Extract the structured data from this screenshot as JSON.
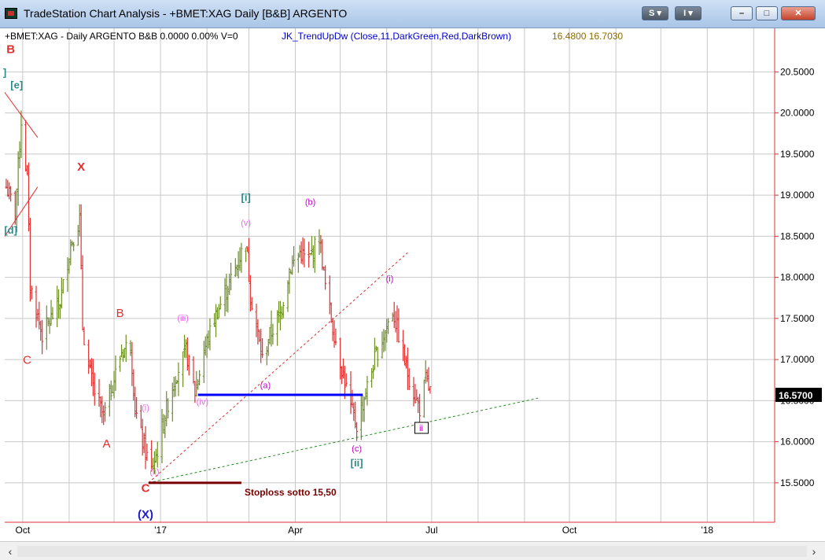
{
  "window": {
    "title": "TradeStation Chart Analysis - +BMET:XAG Daily [B&B] ARGENTO",
    "buttons": {
      "s_label": "S",
      "i_label": "I",
      "minimize": "–",
      "maximize": "□",
      "close": "✕"
    }
  },
  "chart_header": {
    "symbol_info": "+BMET:XAG - Daily  ARGENTO  B&B  0.0000  0.00%  V=0",
    "indicator": "JK_TrendUpDw (Close,11,DarkGreen,Red,DarkBrown)",
    "indicator_values": "16.4800  16.7030"
  },
  "colors": {
    "up_bar": "#6b8e23",
    "down_bar": "#e03030",
    "neutral_bar": "#8b5a2b",
    "axis_red": "#e03030",
    "grid": "#c8c8c8",
    "support_line": "#0000ff",
    "stoploss_line": "#7a0000",
    "trend_dotted_green": "#228b22",
    "trend_dotted_red": "#e03030"
  },
  "chart_data": {
    "type": "ohlc-bar",
    "title": "",
    "xlabel": "",
    "ylabel": "",
    "x_range": [
      "2016-09-19",
      "2018-02-15"
    ],
    "ylim": [
      15.02,
      21.03
    ],
    "y_ticks": [
      15.5,
      16.0,
      16.5,
      17.0,
      17.5,
      18.0,
      18.5,
      19.0,
      19.5,
      20.0,
      20.5
    ],
    "y_tick_labels": [
      "15.5000",
      "16.0000",
      "16.5000",
      "17.0000",
      "17.5000",
      "18.0000",
      "18.5000",
      "19.0000",
      "19.5000",
      "20.0000",
      "20.5000"
    ],
    "x_ticks": [
      {
        "date": "2016-10-01",
        "label": "Oct"
      },
      {
        "date": "2017-01-01",
        "label": "'17"
      },
      {
        "date": "2017-04-01",
        "label": "Apr"
      },
      {
        "date": "2017-07-01",
        "label": "Jul"
      },
      {
        "date": "2017-10-01",
        "label": "Oct"
      },
      {
        "date": "2018-01-01",
        "label": "'18"
      }
    ],
    "x_grid_dates": [
      "2016-11-01",
      "2016-12-01",
      "2017-02-01",
      "2017-03-01",
      "2017-05-01",
      "2017-06-01",
      "2017-08-01",
      "2017-09-01",
      "2017-11-01",
      "2017-12-01",
      "2018-02-01"
    ],
    "last_price": "16.5700",
    "last_price_value": 16.57,
    "close_path": [
      [
        "2016-09-20",
        19.1
      ],
      [
        "2016-09-26",
        18.8
      ],
      [
        "2016-09-30",
        19.9
      ],
      [
        "2016-10-04",
        19.2
      ],
      [
        "2016-10-06",
        17.9
      ],
      [
        "2016-10-10",
        17.6
      ],
      [
        "2016-10-14",
        17.3
      ],
      [
        "2016-10-20",
        17.5
      ],
      [
        "2016-10-26",
        17.7
      ],
      [
        "2016-11-02",
        18.4
      ],
      [
        "2016-11-08",
        18.7
      ],
      [
        "2016-11-10",
        17.4
      ],
      [
        "2016-11-14",
        16.9
      ],
      [
        "2016-11-18",
        16.6
      ],
      [
        "2016-11-24",
        16.3
      ],
      [
        "2016-11-30",
        16.7
      ],
      [
        "2016-12-06",
        17.1
      ],
      [
        "2016-12-12",
        17.2
      ],
      [
        "2016-12-15",
        16.4
      ],
      [
        "2016-12-20",
        16.0
      ],
      [
        "2016-12-26",
        15.65
      ],
      [
        "2016-12-30",
        15.9
      ],
      [
        "2017-01-05",
        16.4
      ],
      [
        "2017-01-11",
        16.8
      ],
      [
        "2017-01-18",
        17.1
      ],
      [
        "2017-01-24",
        16.6
      ],
      [
        "2017-01-30",
        17.1
      ],
      [
        "2017-02-06",
        17.5
      ],
      [
        "2017-02-13",
        17.8
      ],
      [
        "2017-02-20",
        18.1
      ],
      [
        "2017-02-27",
        18.45
      ],
      [
        "2017-03-02",
        17.8
      ],
      [
        "2017-03-06",
        17.4
      ],
      [
        "2017-03-10",
        17.0
      ],
      [
        "2017-03-15",
        17.3
      ],
      [
        "2017-03-22",
        17.55
      ],
      [
        "2017-03-28",
        18.1
      ],
      [
        "2017-04-04",
        18.3
      ],
      [
        "2017-04-10",
        18.2
      ],
      [
        "2017-04-17",
        18.5
      ],
      [
        "2017-04-21",
        17.9
      ],
      [
        "2017-04-26",
        17.4
      ],
      [
        "2017-05-02",
        16.9
      ],
      [
        "2017-05-08",
        16.4
      ],
      [
        "2017-05-12",
        16.2
      ],
      [
        "2017-05-18",
        16.6
      ],
      [
        "2017-05-24",
        17.0
      ],
      [
        "2017-05-30",
        17.3
      ],
      [
        "2017-06-05",
        17.6
      ],
      [
        "2017-06-09",
        17.3
      ],
      [
        "2017-06-14",
        16.9
      ],
      [
        "2017-06-19",
        16.6
      ],
      [
        "2017-06-23",
        16.4
      ],
      [
        "2017-06-27",
        16.75
      ],
      [
        "2017-07-01",
        16.57
      ]
    ],
    "support_line": {
      "start": "2017-01-26",
      "end": "2017-05-16",
      "value": 16.57
    },
    "stoploss_line": {
      "start": "2016-12-24",
      "end": "2017-02-24",
      "value": 15.5,
      "label": "Stoploss  sotto 15,50"
    },
    "trend_lines": [
      {
        "name": "green-dotted-support",
        "style": "dotted",
        "start": [
          "2016-12-24",
          15.5
        ],
        "end": [
          "2017-09-10",
          16.53
        ]
      },
      {
        "name": "red-dotted-channel",
        "style": "dotted",
        "start": [
          "2016-12-24",
          15.5
        ],
        "end": [
          "2017-06-15",
          18.3
        ]
      },
      {
        "name": "red-upper-wedge",
        "style": "solid",
        "start": [
          "2016-09-19",
          20.25
        ],
        "end": [
          "2016-10-11",
          19.7
        ]
      },
      {
        "name": "red-lower-wedge",
        "style": "solid",
        "start": [
          "2016-09-19",
          18.5
        ],
        "end": [
          "2016-10-11",
          19.1
        ]
      }
    ],
    "wave_labels": [
      {
        "text": "B",
        "date": "2016-09-23",
        "y": 20.73,
        "color": "#e03030",
        "bold": true
      },
      {
        "text": "[e]",
        "date": "2016-09-27",
        "y": 20.3,
        "color": "#2e8b8b",
        "bold": true
      },
      {
        "text": "]",
        "date": "2016-09-19",
        "y": 20.45,
        "color": "#2e8b8b",
        "bold": true
      },
      {
        "text": "[d]",
        "date": "2016-09-23",
        "y": 18.53,
        "color": "#2e8b8b",
        "bold": true
      },
      {
        "text": "C",
        "date": "2016-10-04",
        "y": 16.95,
        "color": "#e03030",
        "bold": false
      },
      {
        "text": "X",
        "date": "2016-11-09",
        "y": 19.3,
        "color": "#e03030",
        "bold": true
      },
      {
        "text": "B",
        "date": "2016-12-05",
        "y": 17.52,
        "color": "#e03030",
        "bold": false
      },
      {
        "text": "A",
        "date": "2016-11-26",
        "y": 15.93,
        "color": "#e03030",
        "bold": false
      },
      {
        "text": "(i)",
        "date": "2016-12-22",
        "y": 16.38,
        "color": "#ee66ee",
        "bold": false
      },
      {
        "text": "(ii)",
        "date": "2016-12-28",
        "y": 15.6,
        "color": "#ee66ee",
        "bold": false
      },
      {
        "text": "C",
        "date": "2016-12-22",
        "y": 15.39,
        "color": "#e03030",
        "bold": true
      },
      {
        "text": "(X)",
        "date": "2016-12-22",
        "y": 15.07,
        "color": "#1c1cc8",
        "bold": true
      },
      {
        "text": "(iii)",
        "date": "2017-01-16",
        "y": 17.47,
        "color": "#ee66ee",
        "bold": false
      },
      {
        "text": "(iv)",
        "date": "2017-01-29",
        "y": 16.45,
        "color": "#ee66ee",
        "bold": false
      },
      {
        "text": "(v)",
        "date": "2017-02-27",
        "y": 18.63,
        "color": "#ee66ee",
        "bold": false
      },
      {
        "text": "[i]",
        "date": "2017-02-27",
        "y": 18.93,
        "color": "#2e8b8b",
        "bold": true
      },
      {
        "text": "(a)",
        "date": "2017-03-12",
        "y": 16.65,
        "color": "#cc00cc",
        "bold": false
      },
      {
        "text": "(b)",
        "date": "2017-04-11",
        "y": 18.88,
        "color": "#cc00cc",
        "bold": false
      },
      {
        "text": "(c)",
        "date": "2017-05-12",
        "y": 15.88,
        "color": "#cc00cc",
        "bold": false
      },
      {
        "text": "[ii]",
        "date": "2017-05-12",
        "y": 15.7,
        "color": "#2e8b8b",
        "bold": true
      },
      {
        "text": "(i)",
        "date": "2017-06-03",
        "y": 17.95,
        "color": "#cc00cc",
        "bold": false
      },
      {
        "text": "ii",
        "date": "2017-06-24",
        "y": 16.13,
        "color": "#cc00cc",
        "bold": false,
        "boxed": true
      }
    ]
  }
}
